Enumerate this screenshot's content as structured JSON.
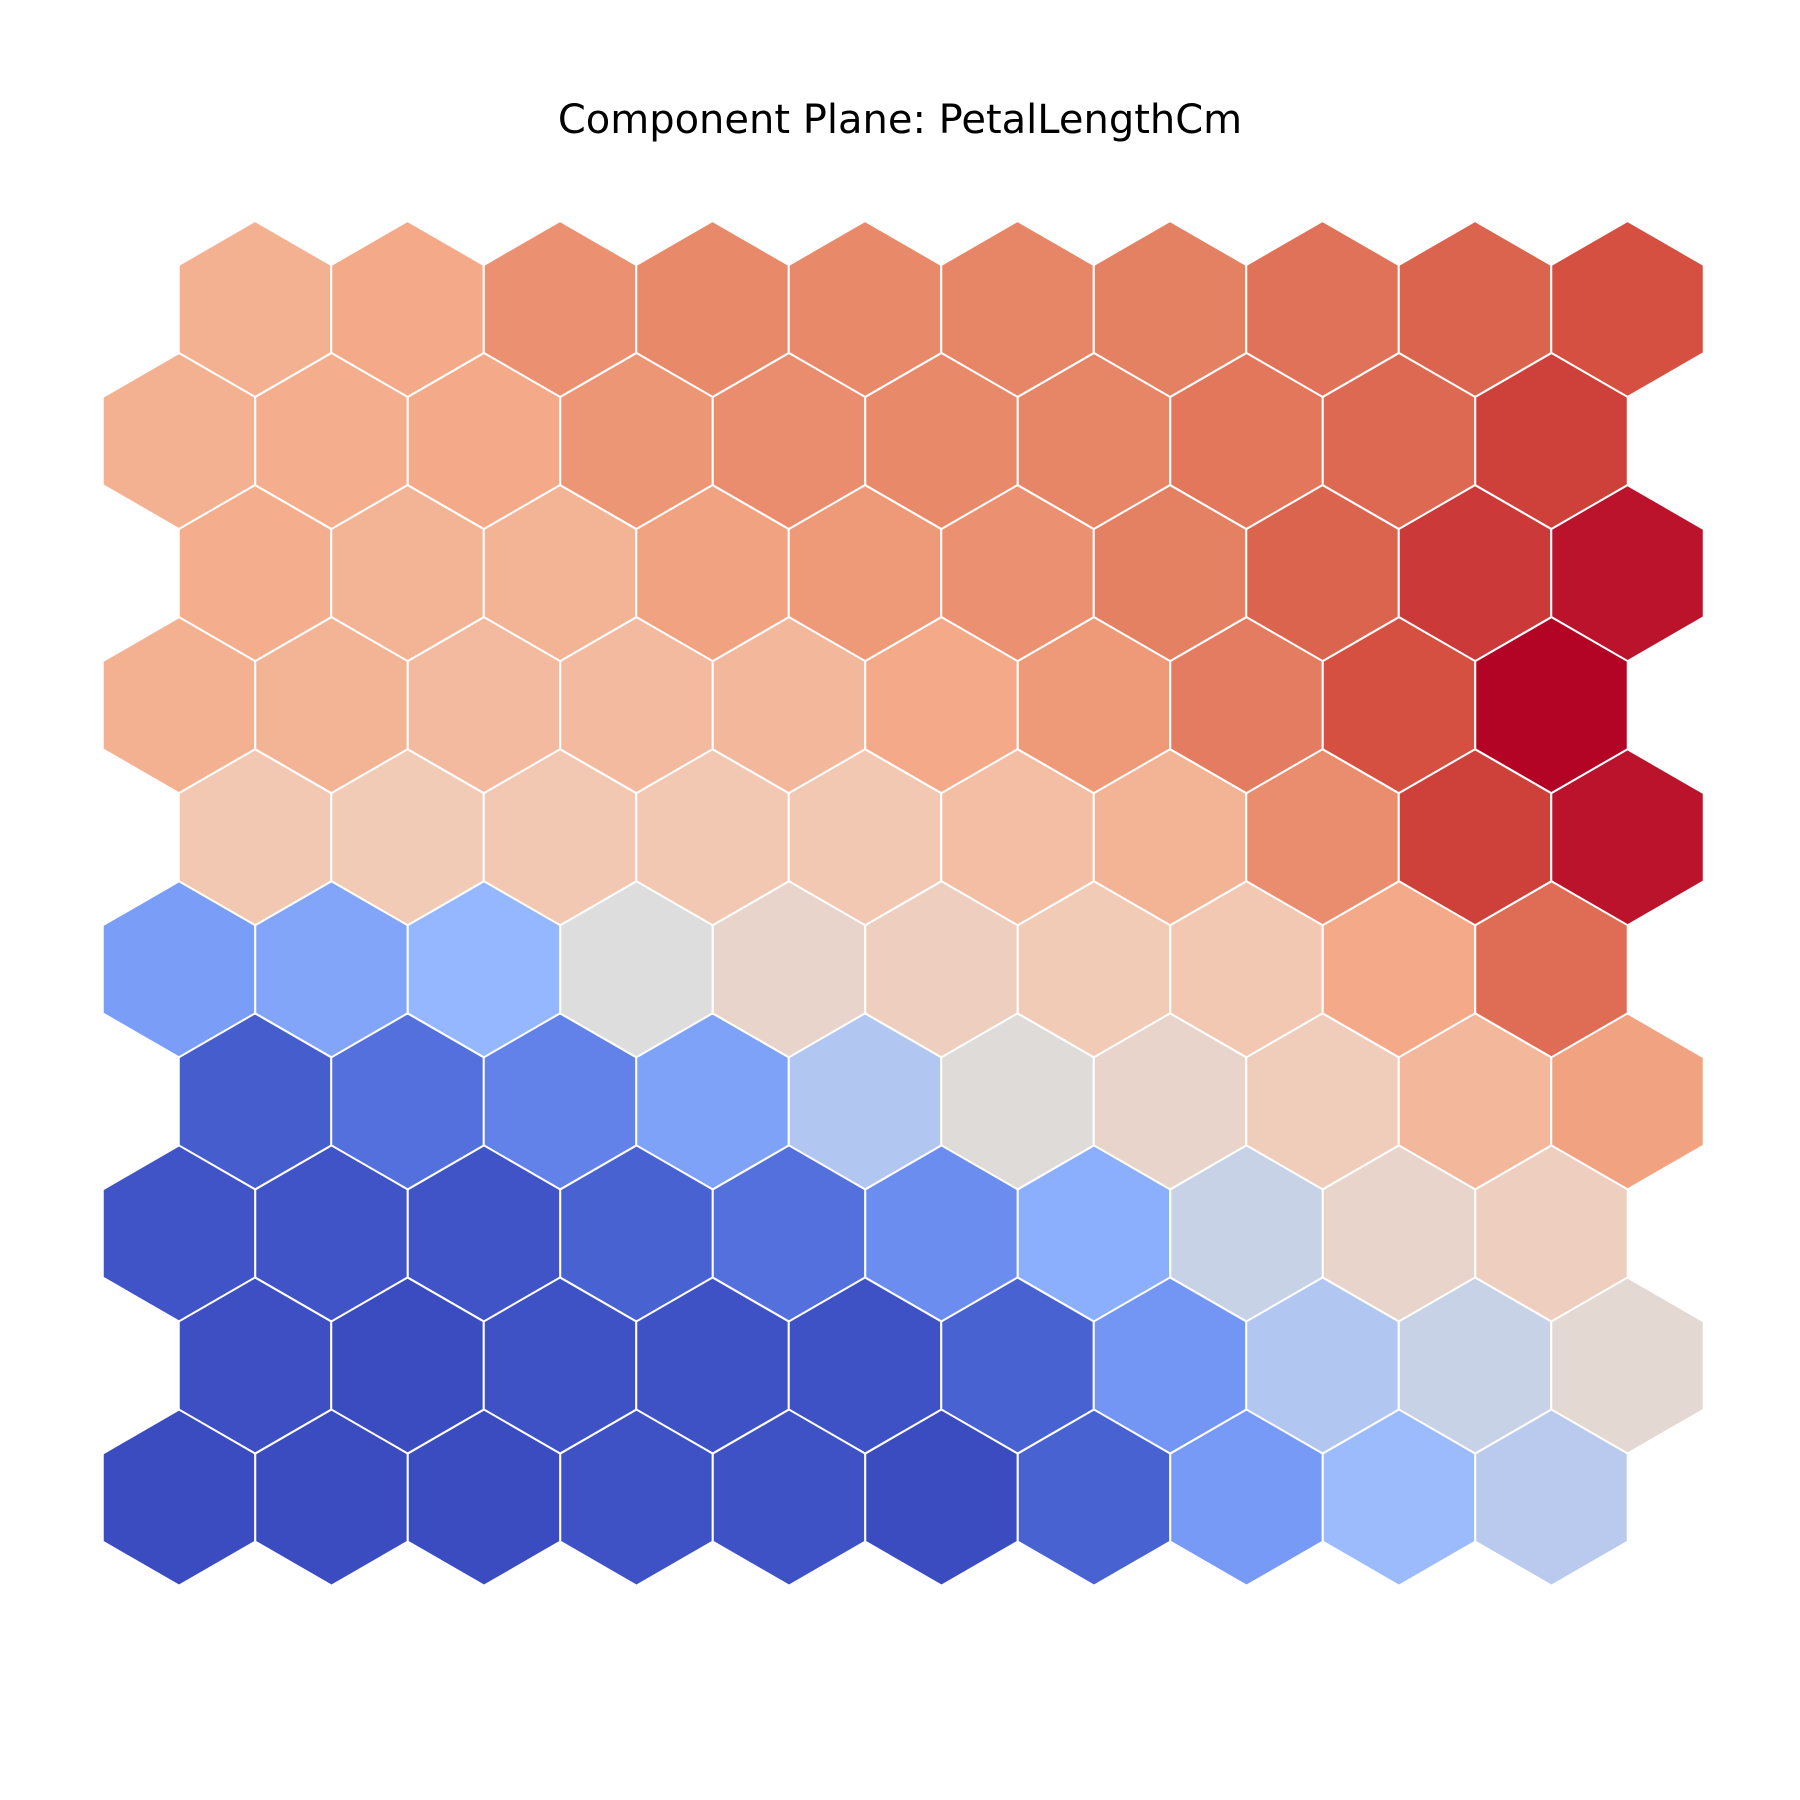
{
  "chart_data": {
    "type": "heatmap",
    "subtype": "som-hexagonal-component-plane",
    "title": "Component Plane: PetalLengthCm",
    "colormap": "coolwarm",
    "grid": {
      "rows": 10,
      "cols": 10,
      "topology": "hexagonal"
    },
    "row_order": "top-to-bottom",
    "value_range": [
      0,
      1
    ],
    "values": [
      [
        0.68,
        0.7,
        0.76,
        0.78,
        0.78,
        0.79,
        0.8,
        0.83,
        0.86,
        0.9
      ],
      [
        0.68,
        0.69,
        0.7,
        0.75,
        0.77,
        0.78,
        0.79,
        0.82,
        0.85,
        0.92
      ],
      [
        0.69,
        0.67,
        0.67,
        0.72,
        0.74,
        0.76,
        0.8,
        0.86,
        0.93,
        0.98
      ],
      [
        0.68,
        0.67,
        0.65,
        0.65,
        0.66,
        0.7,
        0.74,
        0.81,
        0.9,
        1.0
      ],
      [
        0.61,
        0.6,
        0.61,
        0.61,
        0.61,
        0.64,
        0.67,
        0.77,
        0.92,
        0.98
      ],
      [
        0.3,
        0.33,
        0.4,
        0.5,
        0.55,
        0.58,
        0.6,
        0.61,
        0.7,
        0.84
      ],
      [
        0.06,
        0.13,
        0.2,
        0.32,
        0.44,
        0.51,
        0.55,
        0.59,
        0.66,
        0.72
      ],
      [
        0.03,
        0.03,
        0.03,
        0.08,
        0.13,
        0.24,
        0.37,
        0.47,
        0.55,
        0.58
      ],
      [
        0.01,
        0.0,
        0.02,
        0.02,
        0.02,
        0.08,
        0.27,
        0.44,
        0.47,
        0.53
      ],
      [
        0.0,
        0.0,
        0.0,
        0.02,
        0.02,
        0.0,
        0.08,
        0.29,
        0.41,
        0.45
      ]
    ]
  }
}
